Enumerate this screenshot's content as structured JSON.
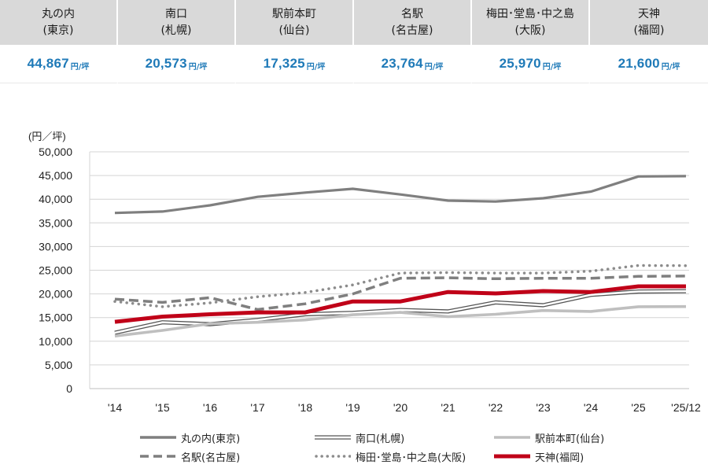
{
  "summary": [
    {
      "name": "丸の内",
      "city": "(東京)",
      "value": "44,867",
      "unit": "円/坪"
    },
    {
      "name": "南口",
      "city": "(札幌)",
      "value": "20,573",
      "unit": "円/坪"
    },
    {
      "name": "駅前本町",
      "city": "(仙台)",
      "value": "17,325",
      "unit": "円/坪"
    },
    {
      "name": "名駅",
      "city": "(名古屋)",
      "value": "23,764",
      "unit": "円/坪"
    },
    {
      "name": "梅田･堂島･中之島",
      "city": "(大阪)",
      "value": "25,970",
      "unit": "円/坪"
    },
    {
      "name": "天神",
      "city": "(福岡)",
      "value": "21,600",
      "unit": "円/坪"
    }
  ],
  "colors": {
    "accent": "#1f7ab8",
    "header_bg": "#d9d9d9",
    "tenjin": "#c00018",
    "gray_dark": "#7f7f7f",
    "gray_light": "#bfbfbf"
  },
  "chart_data": {
    "type": "line",
    "ylabel": "(円／坪)",
    "ylim": [
      0,
      50000
    ],
    "yticks": [
      0,
      5000,
      10000,
      15000,
      20000,
      25000,
      30000,
      35000,
      40000,
      45000,
      50000
    ],
    "ytick_labels": [
      "0",
      "5,000",
      "10,000",
      "15,000",
      "20,000",
      "25,000",
      "30,000",
      "35,000",
      "40,000",
      "45,000",
      "50,000"
    ],
    "categories": [
      "'14",
      "'15",
      "'16",
      "'17",
      "'18",
      "'19",
      "'20",
      "'21",
      "'22",
      "'23",
      "'24",
      "'25",
      "'25/12"
    ],
    "grid": true,
    "series": [
      {
        "name": "丸の内(東京)",
        "style": "solid-gray",
        "values": [
          37100,
          37400,
          38700,
          40500,
          41400,
          42200,
          41000,
          39700,
          39500,
          40200,
          41600,
          44800,
          44867
        ]
      },
      {
        "name": "南口(札幌)",
        "style": "double-line",
        "values": [
          11800,
          14000,
          13600,
          14500,
          15700,
          16000,
          16600,
          16300,
          18200,
          17600,
          19800,
          20500,
          20573
        ]
      },
      {
        "name": "駅前本町(仙台)",
        "style": "light-gray",
        "values": [
          11100,
          12300,
          13700,
          14000,
          14500,
          15600,
          16100,
          15200,
          15700,
          16500,
          16300,
          17300,
          17325
        ]
      },
      {
        "name": "名駅(名古屋)",
        "style": "dashed",
        "values": [
          18900,
          18200,
          19200,
          16700,
          17900,
          20000,
          23300,
          23400,
          23200,
          23300,
          23300,
          23700,
          23764
        ]
      },
      {
        "name": "梅田･堂島･中之島(大阪)",
        "style": "dotted",
        "values": [
          18400,
          17300,
          18100,
          19400,
          20300,
          21900,
          24400,
          24500,
          24400,
          24400,
          24800,
          26000,
          25970
        ]
      },
      {
        "name": "天神(福岡)",
        "style": "red-thick",
        "values": [
          14100,
          15200,
          15700,
          16100,
          16100,
          18400,
          18400,
          20400,
          20100,
          20600,
          20400,
          21600,
          21600
        ]
      }
    ]
  }
}
